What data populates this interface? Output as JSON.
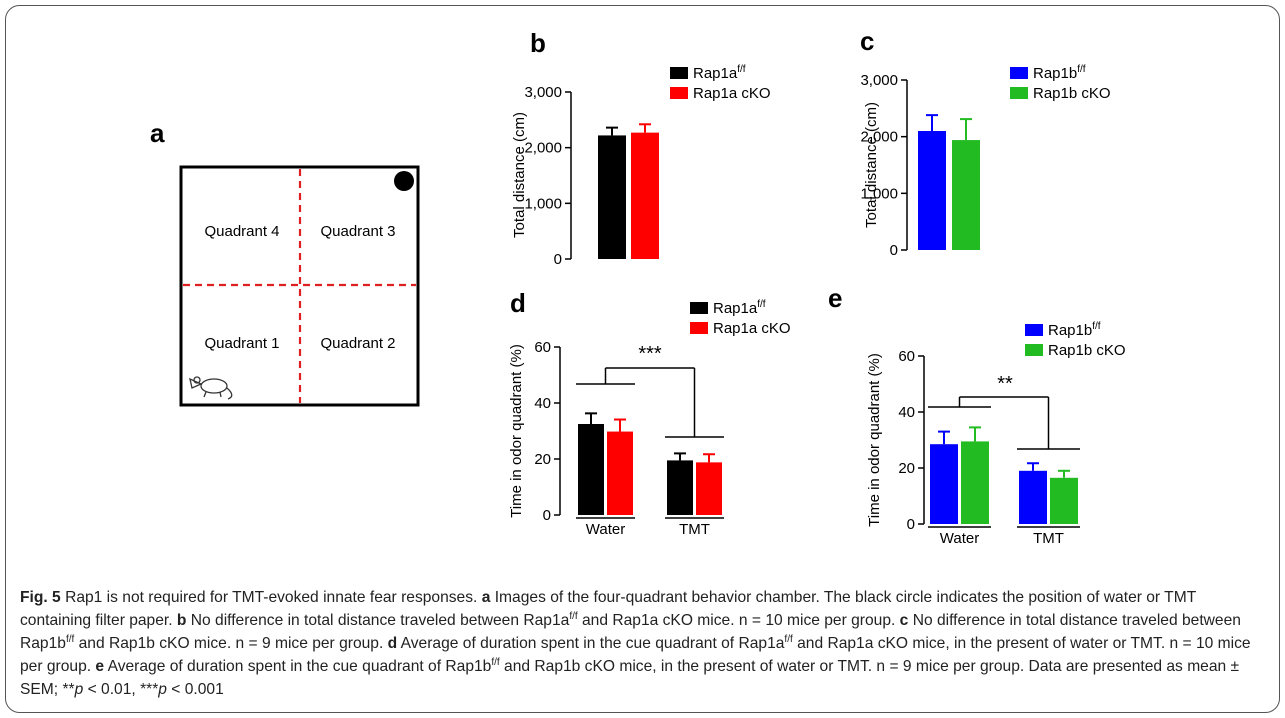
{
  "figure": {
    "diagram": {
      "label": "a",
      "quadrants": [
        "Quadrant 4",
        "Quadrant 3",
        "Quadrant 1",
        "Quadrant 2"
      ]
    },
    "caption": [
      {
        "text": "Fig. 5",
        "style": "bold"
      },
      {
        "text": " Rap1 is not required for TMT-evoked innate fear responses. ",
        "style": "normal"
      },
      {
        "text": "a",
        "style": "bold"
      },
      {
        "text": " Images of the four-quadrant behavior chamber. The black circle indicates the position of water or TMT containing filter paper. ",
        "style": "normal"
      },
      {
        "text": "b",
        "style": "bold"
      },
      {
        "text": " No difference in total distance traveled between Rap1a",
        "style": "normal"
      },
      {
        "text": "f/f",
        "style": "sup"
      },
      {
        "text": " and Rap1a cKO mice. n = 10 mice per group. ",
        "style": "normal"
      },
      {
        "text": "c",
        "style": "bold"
      },
      {
        "text": " No difference in total distance traveled between Rap1b",
        "style": "normal"
      },
      {
        "text": "f/f",
        "style": "sup"
      },
      {
        "text": " and Rap1b cKO mice. n = 9 mice per group. ",
        "style": "normal"
      },
      {
        "text": "d",
        "style": "bold"
      },
      {
        "text": " Average of duration spent in the cue quadrant of Rap1a",
        "style": "normal"
      },
      {
        "text": "f/f",
        "style": "sup"
      },
      {
        "text": " and Rap1a cKO mice, in the present of water or TMT. n = 10 mice per group. ",
        "style": "normal"
      },
      {
        "text": "e",
        "style": "bold"
      },
      {
        "text": " Average of duration spent in the cue quadrant of Rap1b",
        "style": "normal"
      },
      {
        "text": "f/f",
        "style": "sup"
      },
      {
        "text": " and Rap1b cKO mice, in the present of water or TMT. n = 9 mice per group. Data are presented as mean ± SEM; **",
        "style": "normal"
      },
      {
        "text": "p",
        "style": "italic"
      },
      {
        "text": " < 0.01, ***",
        "style": "normal"
      },
      {
        "text": "p",
        "style": "italic"
      },
      {
        "text": " < 0.001",
        "style": "normal"
      }
    ]
  },
  "chart_data": [
    {
      "type": "bar",
      "panel": "b",
      "ylabel": "Total distance (cm)",
      "ylim": [
        0,
        3000
      ],
      "yticks": [
        0,
        {
          "value": 1000,
          "label": "1,000"
        },
        {
          "value": 2000,
          "label": "2,000"
        },
        {
          "value": 3000,
          "label": "3,000"
        }
      ],
      "series": [
        {
          "name": "Rap1a",
          "superscript": "f/f",
          "color": "#000000",
          "values": [
            2220
          ],
          "errors": [
            140
          ]
        },
        {
          "name": "Rap1a cKO",
          "color": "#ff0000",
          "values": [
            2270
          ],
          "errors": [
            150
          ]
        }
      ]
    },
    {
      "type": "bar",
      "panel": "c",
      "ylabel": "Total distance (cm)",
      "ylim": [
        0,
        3000
      ],
      "yticks": [
        0,
        {
          "value": 1000,
          "label": "1,000"
        },
        {
          "value": 2000,
          "label": "2,000"
        },
        {
          "value": 3000,
          "label": "3,000"
        }
      ],
      "series": [
        {
          "name": "Rap1b",
          "superscript": "f/f",
          "color": "#0000ff",
          "values": [
            2100
          ],
          "errors": [
            280
          ]
        },
        {
          "name": "Rap1b cKO",
          "color": "#22bb22",
          "values": [
            1940
          ],
          "errors": [
            370
          ]
        }
      ]
    },
    {
      "type": "bar",
      "panel": "d",
      "ylabel": "Time in odor quadrant (%)",
      "categories": [
        "Water",
        "TMT"
      ],
      "significance": "***",
      "ylim": [
        0,
        60
      ],
      "yticks": [
        0,
        20,
        40,
        60
      ],
      "series": [
        {
          "name": "Rap1a",
          "superscript": "f/f",
          "color": "#000000",
          "values": [
            32.5,
            19.5
          ],
          "errors": [
            3.8,
            2.5
          ]
        },
        {
          "name": "Rap1a cKO",
          "color": "#ff0000",
          "values": [
            29.8,
            18.8
          ],
          "errors": [
            4.3,
            2.9
          ]
        }
      ]
    },
    {
      "type": "bar",
      "panel": "e",
      "ylabel": "Time in odor quadrant (%)",
      "categories": [
        "Water",
        "TMT"
      ],
      "significance": "**",
      "ylim": [
        0,
        60
      ],
      "yticks": [
        0,
        20,
        40,
        60
      ],
      "series": [
        {
          "name": "Rap1b",
          "superscript": "f/f",
          "color": "#0000ff",
          "values": [
            28.5,
            19
          ],
          "errors": [
            4.5,
            2.7
          ]
        },
        {
          "name": "Rap1b cKO",
          "color": "#22bb22",
          "values": [
            29.5,
            16.5
          ],
          "errors": [
            5,
            2.5
          ]
        }
      ]
    }
  ]
}
